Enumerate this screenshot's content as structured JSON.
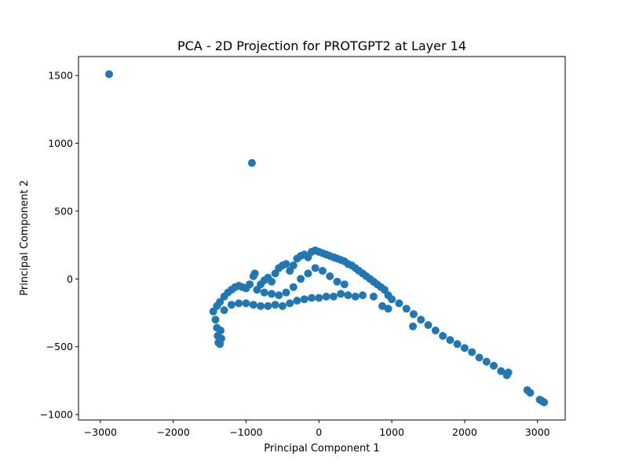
{
  "chart_data": {
    "type": "scatter",
    "title": "PCA - 2D Projection for PROTGPT2 at Layer 14",
    "xlabel": "Principal Component 1",
    "ylabel": "Principal Component 2",
    "xlim": [
      -3300,
      3380
    ],
    "ylim": [
      -1040,
      1640
    ],
    "xticks": [
      -3000,
      -2000,
      -1000,
      0,
      1000,
      2000,
      3000
    ],
    "yticks": [
      -1000,
      -500,
      0,
      500,
      1000,
      1500
    ],
    "grid": false,
    "legend": "none",
    "marker_color": "#1f77b4",
    "outliers": [
      {
        "x": -2880,
        "y": 1510
      },
      {
        "x": -920,
        "y": 855
      }
    ],
    "series": [
      {
        "points": [
          {
            "x": -1450,
            "y": -240
          },
          {
            "x": -1420,
            "y": -300
          },
          {
            "x": -1400,
            "y": -360
          },
          {
            "x": -1390,
            "y": -420
          },
          {
            "x": -1380,
            "y": -470
          },
          {
            "x": -1360,
            "y": -480
          },
          {
            "x": -1340,
            "y": -440
          },
          {
            "x": -1350,
            "y": -380
          },
          {
            "x": -1400,
            "y": -200
          },
          {
            "x": -1360,
            "y": -170
          },
          {
            "x": -1300,
            "y": -130
          },
          {
            "x": -1250,
            "y": -100
          },
          {
            "x": -1200,
            "y": -80
          },
          {
            "x": -1150,
            "y": -60
          },
          {
            "x": -1100,
            "y": -50
          },
          {
            "x": -1050,
            "y": -60
          },
          {
            "x": -1000,
            "y": -70
          },
          {
            "x": -950,
            "y": -40
          },
          {
            "x": -900,
            "y": 20
          },
          {
            "x": -880,
            "y": 40
          },
          {
            "x": -850,
            "y": -80
          },
          {
            "x": -800,
            "y": -40
          },
          {
            "x": -750,
            "y": -10
          },
          {
            "x": -700,
            "y": 10
          },
          {
            "x": -650,
            "y": -20
          },
          {
            "x": -600,
            "y": 40
          },
          {
            "x": -550,
            "y": 80
          },
          {
            "x": -500,
            "y": 100
          },
          {
            "x": -450,
            "y": 110
          },
          {
            "x": -400,
            "y": 60
          },
          {
            "x": -350,
            "y": 100
          },
          {
            "x": -300,
            "y": 150
          },
          {
            "x": -250,
            "y": 170
          },
          {
            "x": -200,
            "y": 180
          },
          {
            "x": -150,
            "y": 160
          },
          {
            "x": -100,
            "y": 200
          },
          {
            "x": -50,
            "y": 210
          },
          {
            "x": 0,
            "y": 200
          },
          {
            "x": 50,
            "y": 190
          },
          {
            "x": 100,
            "y": 180
          },
          {
            "x": 150,
            "y": 170
          },
          {
            "x": 200,
            "y": 160
          },
          {
            "x": 250,
            "y": 150
          },
          {
            "x": 300,
            "y": 140
          },
          {
            "x": 350,
            "y": 130
          },
          {
            "x": 400,
            "y": 110
          },
          {
            "x": 450,
            "y": 100
          },
          {
            "x": 500,
            "y": 80
          },
          {
            "x": 550,
            "y": 60
          },
          {
            "x": 600,
            "y": 40
          },
          {
            "x": 650,
            "y": 20
          },
          {
            "x": 700,
            "y": 0
          },
          {
            "x": 750,
            "y": -20
          },
          {
            "x": 800,
            "y": -40
          },
          {
            "x": 850,
            "y": -60
          },
          {
            "x": 900,
            "y": -80
          },
          {
            "x": 950,
            "y": -120
          },
          {
            "x": 1000,
            "y": -150
          },
          {
            "x": 1100,
            "y": -180
          },
          {
            "x": 1200,
            "y": -220
          },
          {
            "x": 1300,
            "y": -260
          },
          {
            "x": 1400,
            "y": -300
          },
          {
            "x": 1500,
            "y": -340
          },
          {
            "x": 1600,
            "y": -380
          },
          {
            "x": 1700,
            "y": -420
          },
          {
            "x": 1800,
            "y": -450
          },
          {
            "x": 1900,
            "y": -480
          },
          {
            "x": 2000,
            "y": -510
          },
          {
            "x": 2100,
            "y": -540
          },
          {
            "x": 2200,
            "y": -580
          },
          {
            "x": 2300,
            "y": -610
          },
          {
            "x": 2400,
            "y": -640
          },
          {
            "x": 2500,
            "y": -680
          },
          {
            "x": 2580,
            "y": -710
          },
          {
            "x": 2600,
            "y": -690
          },
          {
            "x": 2860,
            "y": -820
          },
          {
            "x": 2900,
            "y": -840
          },
          {
            "x": 3030,
            "y": -890
          },
          {
            "x": 3060,
            "y": -900
          },
          {
            "x": 3090,
            "y": -910
          },
          {
            "x": 870,
            "y": -200
          },
          {
            "x": 950,
            "y": -220
          },
          {
            "x": 1290,
            "y": -350
          },
          {
            "x": 750,
            "y": -130
          },
          {
            "x": 600,
            "y": -120
          },
          {
            "x": 500,
            "y": -130
          },
          {
            "x": 400,
            "y": -120
          },
          {
            "x": 300,
            "y": -110
          },
          {
            "x": 200,
            "y": -130
          },
          {
            "x": 100,
            "y": -130
          },
          {
            "x": 0,
            "y": -140
          },
          {
            "x": -100,
            "y": -140
          },
          {
            "x": -200,
            "y": -150
          },
          {
            "x": -300,
            "y": -160
          },
          {
            "x": -400,
            "y": -180
          },
          {
            "x": -500,
            "y": -200
          },
          {
            "x": -600,
            "y": -190
          },
          {
            "x": -700,
            "y": -200
          },
          {
            "x": -800,
            "y": -200
          },
          {
            "x": -900,
            "y": -190
          },
          {
            "x": -1000,
            "y": -180
          },
          {
            "x": -1100,
            "y": -180
          },
          {
            "x": -1200,
            "y": -190
          },
          {
            "x": -1300,
            "y": -230
          },
          {
            "x": -250,
            "y": 0
          },
          {
            "x": -150,
            "y": 40
          },
          {
            "x": -50,
            "y": 80
          },
          {
            "x": 50,
            "y": 60
          },
          {
            "x": 150,
            "y": 20
          },
          {
            "x": 250,
            "y": -20
          },
          {
            "x": 350,
            "y": -40
          },
          {
            "x": -350,
            "y": -60
          },
          {
            "x": -450,
            "y": -100
          },
          {
            "x": -550,
            "y": -120
          },
          {
            "x": -650,
            "y": -110
          },
          {
            "x": -750,
            "y": -100
          }
        ]
      }
    ]
  }
}
